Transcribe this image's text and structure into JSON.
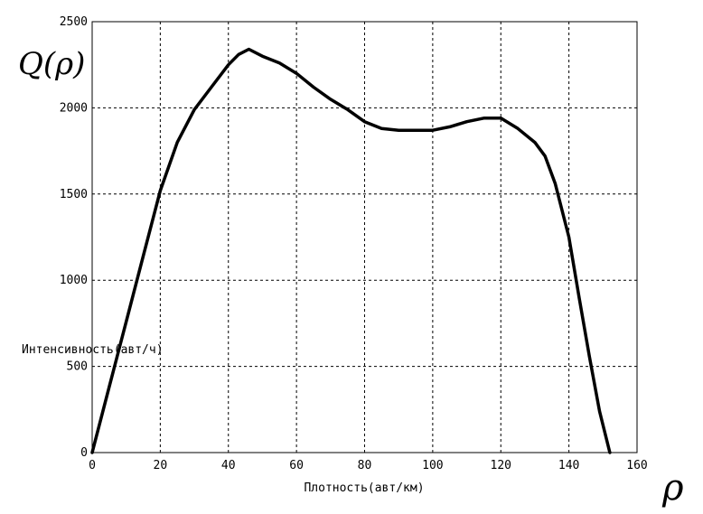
{
  "chart_data": {
    "type": "line",
    "xlabel": "Плотность(авт/км)",
    "ylabel": "Интенсивность(авт/ч)",
    "x_symbol": "ρ",
    "y_symbol": "Q(ρ)",
    "xlim": [
      0,
      160
    ],
    "ylim": [
      0,
      2500
    ],
    "x_ticks": [
      0,
      20,
      40,
      60,
      80,
      100,
      120,
      140,
      160
    ],
    "y_ticks": [
      0,
      500,
      1000,
      1500,
      2000,
      2500
    ],
    "grid": true,
    "series": [
      {
        "x": [
          0,
          5,
          10,
          15,
          20,
          25,
          30,
          35,
          40,
          43,
          46,
          50,
          55,
          60,
          65,
          70,
          75,
          80,
          85,
          90,
          95,
          100,
          105,
          110,
          115,
          120,
          125,
          130,
          133,
          136,
          140,
          143,
          146,
          149,
          152
        ],
        "y": [
          0,
          380,
          760,
          1140,
          1520,
          1800,
          1990,
          2120,
          2250,
          2310,
          2340,
          2300,
          2260,
          2200,
          2120,
          2050,
          1990,
          1920,
          1880,
          1870,
          1870,
          1870,
          1890,
          1920,
          1940,
          1940,
          1880,
          1800,
          1720,
          1560,
          1250,
          900,
          560,
          240,
          0
        ]
      }
    ]
  }
}
